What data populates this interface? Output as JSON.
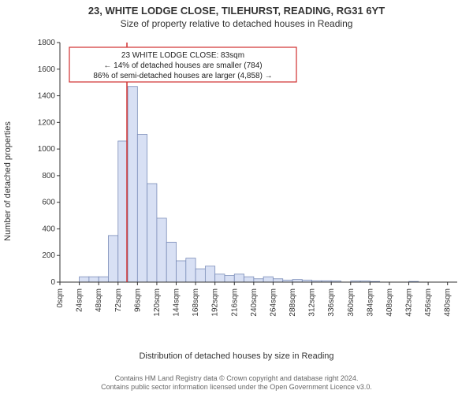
{
  "title_line1": "23, WHITE LODGE CLOSE, TILEHURST, READING, RG31 6YT",
  "title_line2": "Size of property relative to detached houses in Reading",
  "ylabel": "Number of detached properties",
  "xlabel": "Distribution of detached houses by size in Reading",
  "attribution_line1": "Contains HM Land Registry data © Crown copyright and database right 2024.",
  "attribution_line2": "Contains public sector information licensed under the Open Government Licence v3.0.",
  "chart": {
    "type": "histogram",
    "bar_fill": "#d8e0f4",
    "bar_stroke": "#7a8cb8",
    "ref_color": "#d03030",
    "annot_border": "#d03030",
    "background": "#ffffff",
    "axis_color": "#333333",
    "ylim": [
      0,
      1800
    ],
    "ytick_step": 200,
    "xlim": [
      0,
      492
    ],
    "xtick_step": 24,
    "xtick_unit": "sqm",
    "bin_width": 12,
    "reference_x": 83,
    "annotation": {
      "line1": "23 WHITE LODGE CLOSE: 83sqm",
      "line2": "← 14% of detached houses are smaller (784)",
      "line3": "86% of semi-detached houses are larger (4,858) →"
    },
    "bins": [
      {
        "x": 12,
        "count": 0
      },
      {
        "x": 24,
        "count": 40
      },
      {
        "x": 36,
        "count": 40
      },
      {
        "x": 48,
        "count": 40
      },
      {
        "x": 60,
        "count": 350
      },
      {
        "x": 72,
        "count": 1060
      },
      {
        "x": 84,
        "count": 1470
      },
      {
        "x": 96,
        "count": 1110
      },
      {
        "x": 108,
        "count": 740
      },
      {
        "x": 120,
        "count": 480
      },
      {
        "x": 132,
        "count": 300
      },
      {
        "x": 144,
        "count": 160
      },
      {
        "x": 156,
        "count": 180
      },
      {
        "x": 168,
        "count": 100
      },
      {
        "x": 180,
        "count": 120
      },
      {
        "x": 192,
        "count": 60
      },
      {
        "x": 204,
        "count": 50
      },
      {
        "x": 216,
        "count": 60
      },
      {
        "x": 228,
        "count": 40
      },
      {
        "x": 240,
        "count": 25
      },
      {
        "x": 252,
        "count": 40
      },
      {
        "x": 264,
        "count": 25
      },
      {
        "x": 276,
        "count": 15
      },
      {
        "x": 288,
        "count": 20
      },
      {
        "x": 300,
        "count": 15
      },
      {
        "x": 312,
        "count": 10
      },
      {
        "x": 324,
        "count": 10
      },
      {
        "x": 336,
        "count": 8
      },
      {
        "x": 348,
        "count": 0
      },
      {
        "x": 360,
        "count": 8
      },
      {
        "x": 372,
        "count": 8
      },
      {
        "x": 384,
        "count": 5
      },
      {
        "x": 396,
        "count": 0
      },
      {
        "x": 408,
        "count": 0
      },
      {
        "x": 420,
        "count": 0
      },
      {
        "x": 432,
        "count": 5
      },
      {
        "x": 444,
        "count": 0
      },
      {
        "x": 456,
        "count": 0
      },
      {
        "x": 468,
        "count": 0
      },
      {
        "x": 480,
        "count": 0
      }
    ]
  }
}
